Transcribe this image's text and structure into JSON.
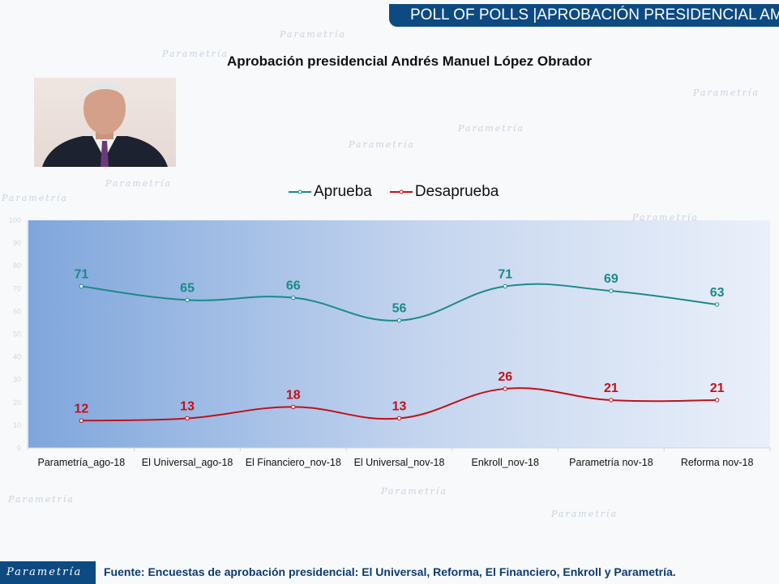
{
  "header": {
    "title": "POLL OF POLLS |APROBACIÓN PRESIDENCIAL AMLO"
  },
  "watermark": "Parametría",
  "chart_data": {
    "type": "line",
    "title": "Aprobación presidencial Andrés Manuel López Obrador",
    "categories": [
      "Parametría_ago-18",
      "El Universal_ago-18",
      "El Financiero_nov-18",
      "El Universal_nov-18",
      "Enkroll_nov-18",
      "Parametría nov-18",
      "Reforma nov-18"
    ],
    "series": [
      {
        "name": "Aprueba",
        "values": [
          71,
          65,
          66,
          56,
          71,
          69,
          63
        ],
        "color": "#1a8a8a"
      },
      {
        "name": "Desaprueba",
        "values": [
          12,
          13,
          18,
          13,
          26,
          21,
          21
        ],
        "color": "#c0121a"
      }
    ],
    "ylim": [
      0,
      100
    ],
    "yticks": [
      0,
      10,
      20,
      30,
      40,
      50,
      60,
      70,
      80,
      90,
      100
    ],
    "legend": "top",
    "smooth": true,
    "grid": false
  },
  "footer": {
    "logo": "Parametría",
    "source": "Fuente: Encuestas de aprobación presidencial: El Universal, Reforma, El Financiero, Enkroll y Parametría."
  }
}
